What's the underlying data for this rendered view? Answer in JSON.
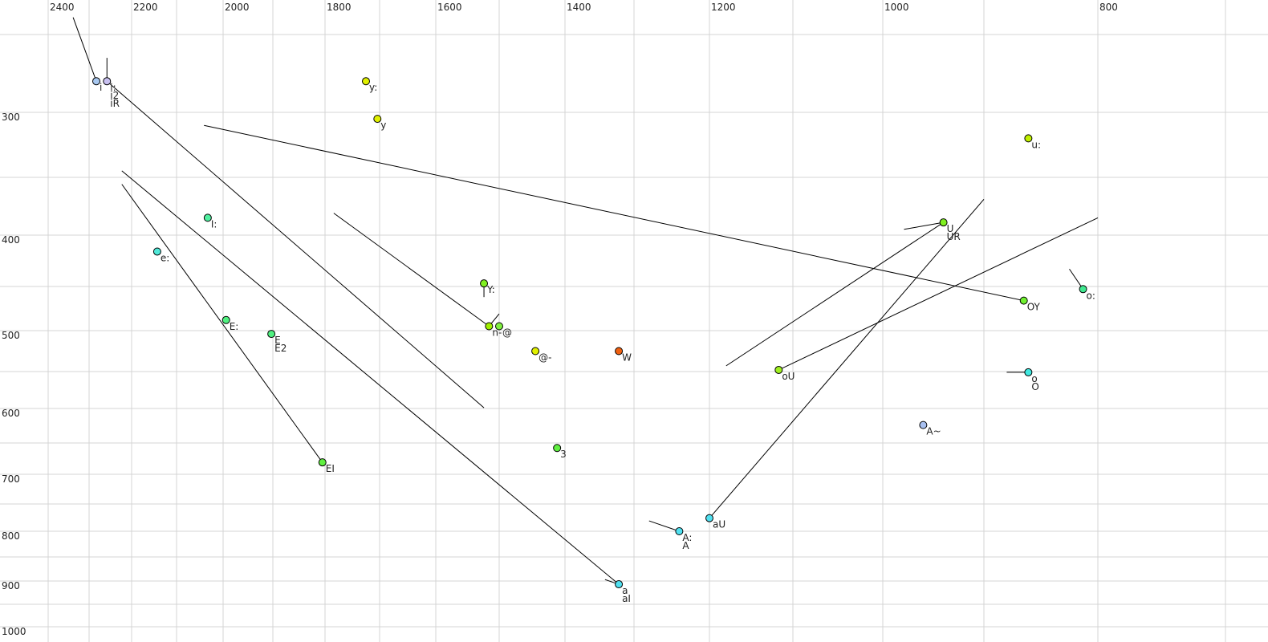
{
  "chart_data": {
    "type": "scatter",
    "title": "",
    "xlabel": "",
    "ylabel": "",
    "x_axis": {
      "quantity": "F2",
      "unit": "Hz",
      "reversed": true,
      "position": "top",
      "scale": "nonlinear (perceptual)",
      "range": [
        2450,
        700
      ],
      "tick_labels": [
        "2400",
        "2200",
        "2000",
        "1800",
        "1600",
        "1400",
        "1200",
        "1000",
        "800"
      ],
      "ticks": [
        2400,
        2200,
        2000,
        1800,
        1600,
        1400,
        1200,
        1000,
        800
      ]
    },
    "y_axis": {
      "quantity": "F1",
      "unit": "Hz",
      "reversed": true,
      "position": "left",
      "scale": "nonlinear (perceptual)",
      "range": [
        230,
        1000
      ],
      "tick_labels": [
        "300",
        "400",
        "500",
        "600",
        "700",
        "800",
        "900",
        "1000"
      ],
      "ticks": [
        300,
        400,
        500,
        600,
        700,
        800,
        900,
        1000
      ]
    },
    "grid": true,
    "points": [
      {
        "labels": [
          "i"
        ],
        "f2": 2283,
        "f1": 280,
        "color": "#a8c8f0"
      },
      {
        "labels": [
          "i:",
          "i2",
          "iR"
        ],
        "f2": 2258,
        "f1": 280,
        "color": "#c8c0f0"
      },
      {
        "labels": [
          "y:"
        ],
        "f2": 1725,
        "f1": 280,
        "color": "#e0f000"
      },
      {
        "labels": [
          "y"
        ],
        "f2": 1704,
        "f1": 305,
        "color": "#e0f000"
      },
      {
        "labels": [
          "I:"
        ],
        "f2": 2033,
        "f1": 385,
        "color": "#50f0a0"
      },
      {
        "labels": [
          "e:"
        ],
        "f2": 2143,
        "f1": 416,
        "color": "#50e8d8"
      },
      {
        "labels": [
          "E:"
        ],
        "f2": 1994,
        "f1": 488,
        "color": "#50f080"
      },
      {
        "labels": [
          "E",
          "E2"
        ],
        "f2": 1903,
        "f1": 504,
        "color": "#50f080"
      },
      {
        "labels": [
          "EI"
        ],
        "f2": 1805,
        "f1": 681,
        "color": "#60f040"
      },
      {
        "labels": [
          "Y:"
        ],
        "f2": 1524,
        "f1": 447,
        "color": "#80f020"
      },
      {
        "labels": [
          "n-"
        ],
        "f2": 1516,
        "f1": 495,
        "color": "#a0f000"
      },
      {
        "labels": [
          "@"
        ],
        "f2": 1500,
        "f1": 495,
        "color": "#80f040"
      },
      {
        "labels": [
          "@-"
        ],
        "f2": 1445,
        "f1": 525,
        "color": "#e0f000"
      },
      {
        "labels": [
          "W"
        ],
        "f2": 1322,
        "f1": 525,
        "color": "#f06010"
      },
      {
        "labels": [
          "3"
        ],
        "f2": 1412,
        "f1": 658,
        "color": "#60f040"
      },
      {
        "labels": [
          "A:",
          "A"
        ],
        "f2": 1240,
        "f1": 800,
        "color": "#50e0f0"
      },
      {
        "labels": [
          "aU"
        ],
        "f2": 1200,
        "f1": 776,
        "color": "#50e0f0"
      },
      {
        "labels": [
          "a",
          "aI"
        ],
        "f2": 1322,
        "f1": 907,
        "color": "#50e0f0"
      },
      {
        "labels": [
          "oU"
        ],
        "f2": 1117,
        "f1": 548,
        "color": "#a0f020"
      },
      {
        "labels": [
          "U",
          "UR"
        ],
        "f2": 940,
        "f1": 389,
        "color": "#80f020"
      },
      {
        "labels": [
          "u:"
        ],
        "f2": 861,
        "f1": 320,
        "color": "#c0f000"
      },
      {
        "labels": [
          "OY"
        ],
        "f2": 865,
        "f1": 466,
        "color": "#70f030"
      },
      {
        "labels": [
          "o:"
        ],
        "f2": 813,
        "f1": 453,
        "color": "#40e890"
      },
      {
        "labels": [
          "o",
          "O"
        ],
        "f2": 861,
        "f1": 551,
        "color": "#40e8e0"
      },
      {
        "labels": [
          "A~"
        ],
        "f2": 960,
        "f1": 624,
        "color": "#a8c0f0"
      }
    ],
    "trajectories": [
      {
        "from": [
          2339,
          239
        ],
        "to": [
          2283,
          280
        ]
      },
      {
        "from": [
          2258,
          265
        ],
        "to": [
          2258,
          280
        ]
      },
      {
        "from": [
          2258,
          280
        ],
        "to": [
          1524,
          599
        ]
      },
      {
        "from": [
          2041,
          310
        ],
        "to": [
          865,
          466
        ]
      },
      {
        "from": [
          2223,
          345
        ],
        "to": [
          1322,
          907
        ]
      },
      {
        "from": [
          2223,
          356
        ],
        "to": [
          1805,
          681
        ]
      },
      {
        "from": [
          1784,
          381
        ],
        "to": [
          1516,
          495
        ]
      },
      {
        "from": [
          1516,
          495
        ],
        "to": [
          1500,
          481
        ]
      },
      {
        "from": [
          1524,
          447
        ],
        "to": [
          1524,
          462
        ]
      },
      {
        "from": [
          979,
          395
        ],
        "to": [
          940,
          389
        ]
      },
      {
        "from": [
          1180,
          543
        ],
        "to": [
          940,
          389
        ]
      },
      {
        "from": [
          1200,
          776
        ],
        "to": [
          900,
          369
        ]
      },
      {
        "from": [
          1117,
          548
        ],
        "to": [
          800,
          385
        ]
      },
      {
        "from": [
          825,
          433
        ],
        "to": [
          813,
          453
        ]
      },
      {
        "from": [
          880,
          551
        ],
        "to": [
          861,
          551
        ]
      },
      {
        "from": [
          1280,
          781
        ],
        "to": [
          1240,
          800
        ]
      },
      {
        "from": [
          1342,
          897
        ],
        "to": [
          1322,
          907
        ]
      }
    ]
  }
}
